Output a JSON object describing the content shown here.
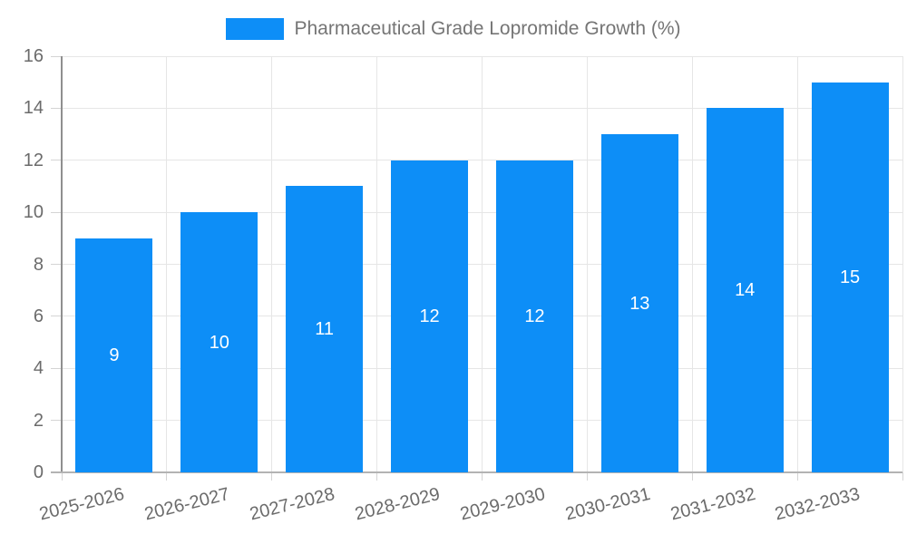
{
  "legend": {
    "label": "Pharmaceutical Grade Lopromide Growth (%)"
  },
  "chart_data": {
    "type": "bar",
    "title": "Pharmaceutical Grade Lopromide Growth (%)",
    "categories": [
      "2025-2026",
      "2026-2027",
      "2027-2028",
      "2028-2029",
      "2029-2030",
      "2030-2031",
      "2031-2032",
      "2032-2033"
    ],
    "values": [
      9,
      10,
      11,
      12,
      12,
      13,
      14,
      15
    ],
    "xlabel": "",
    "ylabel": "",
    "ylim": [
      0,
      16
    ],
    "yticks": [
      0,
      2,
      4,
      6,
      8,
      10,
      12,
      14,
      16
    ],
    "grid": true,
    "legend_position": "top-center",
    "bar_label_position": "inside-center"
  },
  "colors": {
    "bar": "#0d8ef7",
    "bar_label": "#ffffff",
    "grid": "#e6e6e6",
    "tick": "#d4d4d4",
    "y_axis_line": "#8f8f8f",
    "x_axis_line": "#b3b3b3",
    "tick_text": "#6b6b6b",
    "legend_text": "#757575",
    "background": "#ffffff"
  }
}
